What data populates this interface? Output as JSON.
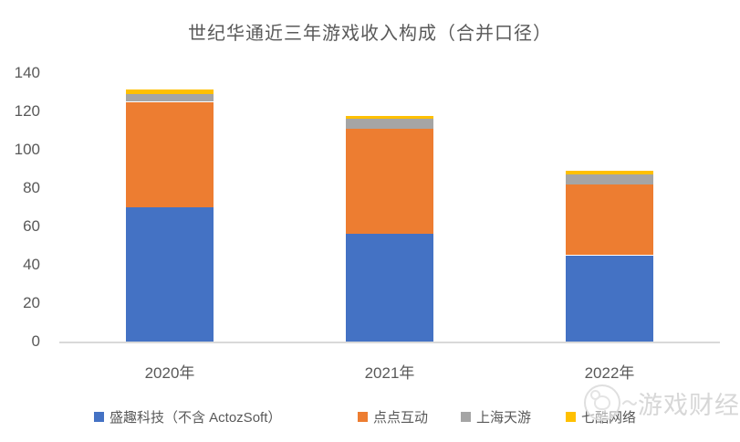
{
  "chart_data": {
    "type": "bar",
    "stacked": true,
    "title": "世纪华通近三年游戏收入构成（合并口径）",
    "categories": [
      "2020年",
      "2021年",
      "2022年"
    ],
    "series": [
      {
        "name": "盛趣科技（不含 ActozSoft）",
        "color": "#4472C4",
        "values": [
          70,
          56,
          45
        ]
      },
      {
        "name": "点点互动",
        "color": "#ED7D31",
        "values": [
          55,
          55,
          37
        ]
      },
      {
        "name": "上海天游",
        "color": "#A5A5A5",
        "values": [
          4,
          5,
          5
        ]
      },
      {
        "name": "七酷网络",
        "color": "#FFC000",
        "values": [
          2.5,
          1.5,
          2
        ]
      }
    ],
    "xlabel": "",
    "ylabel": "",
    "ylim": [
      0,
      140
    ],
    "yticks": [
      0,
      20,
      40,
      60,
      80,
      100,
      120,
      140
    ],
    "grid": false,
    "legend_position": "bottom",
    "axis_color": "#D9D9D9",
    "label_color": "#595959",
    "background_color": "#FFFFFF"
  },
  "watermark": {
    "text": "游戏财经汇",
    "logo": "mascot-circle-icon",
    "color": "#D3D3D3"
  }
}
